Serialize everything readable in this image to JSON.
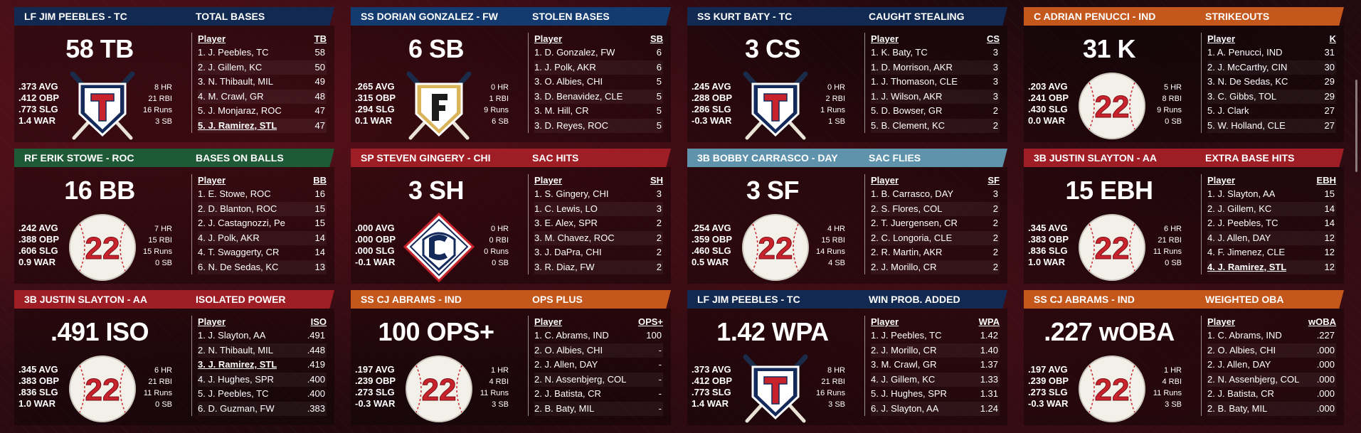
{
  "colors": {
    "navy": "#122a52",
    "blue": "#133b70",
    "green": "#1f5a36",
    "red": "#9f1e26",
    "light_blue": "#5f93ac",
    "orange": "#c4571b"
  },
  "cards": [
    {
      "header_color": "navy",
      "stat_color": "navy",
      "player": "LF JIM PEEBLES - TC",
      "stat_name": "TOTAL BASES",
      "big": "58 TB",
      "logo": "shield-t",
      "lines": [
        ".373 AVG",
        ".412 OBP",
        ".773 SLG",
        "1.4 WAR"
      ],
      "rstats": [
        "8 HR",
        "21 RBI",
        "16 Runs",
        "3 SB"
      ],
      "col_player": "Player",
      "col_stat": "TB",
      "rows": [
        {
          "name": "1. J. Peebles, TC",
          "value": "58"
        },
        {
          "name": "2. J. Gillem, KC",
          "value": "50"
        },
        {
          "name": "3. N. Thibault, MIL",
          "value": "49"
        },
        {
          "name": "4. M. Crawl, GR",
          "value": "48"
        },
        {
          "name": "5. J. Monjaraz, ROC",
          "value": "47"
        },
        {
          "name": "5. J. Ramirez, STL",
          "value": "47",
          "hl": true
        }
      ]
    },
    {
      "header_color": "blue",
      "stat_color": "blue",
      "player": "SS DORIAN GONZALEZ - FW",
      "stat_name": "STOLEN BASES",
      "big": "6 SB",
      "logo": "shield-f",
      "lines": [
        ".265 AVG",
        ".315 OBP",
        ".294 SLG",
        "0.1 WAR"
      ],
      "rstats": [
        "0 HR",
        "1 RBI",
        "9 Runs",
        "6 SB"
      ],
      "col_player": "Player",
      "col_stat": "SB",
      "rows": [
        {
          "name": "1. D. Gonzalez, FW",
          "value": "6"
        },
        {
          "name": "1. J. Polk, AKR",
          "value": "6"
        },
        {
          "name": "3. O. Albies, CHI",
          "value": "5"
        },
        {
          "name": "3. D. Benavidez, CLE",
          "value": "5"
        },
        {
          "name": "3. M. Hill, CR",
          "value": "5"
        },
        {
          "name": "3. D. Reyes, ROC",
          "value": "5"
        }
      ]
    },
    {
      "header_color": "navy",
      "stat_color": "navy",
      "player": "SS KURT BATY - TC",
      "stat_name": "CAUGHT STEALING",
      "big": "3 CS",
      "logo": "shield-t",
      "lines": [
        ".245 AVG",
        ".288 OBP",
        ".286 SLG",
        "-0.3 WAR"
      ],
      "rstats": [
        "0 HR",
        "2 RBI",
        "1 Runs",
        "1 SB"
      ],
      "col_player": "Player",
      "col_stat": "CS",
      "rows": [
        {
          "name": "1. K. Baty, TC",
          "value": "3"
        },
        {
          "name": "1. D. Morrison, AKR",
          "value": "3"
        },
        {
          "name": "1. J. Thomason, CLE",
          "value": "3"
        },
        {
          "name": "1. J. Wilson, AKR",
          "value": "3"
        },
        {
          "name": "5. D. Bowser, GR",
          "value": "2"
        },
        {
          "name": "5. B. Clement, KC",
          "value": "2"
        }
      ]
    },
    {
      "header_color": "orange",
      "stat_color": "orange",
      "player": "C ADRIAN PENUCCI - IND",
      "stat_name": "STRIKEOUTS",
      "big": "31 K",
      "logo": "ball-22",
      "lines": [
        ".203 AVG",
        ".241 OBP",
        ".430 SLG",
        "0.0 WAR"
      ],
      "rstats": [
        "5 HR",
        "8 RBI",
        "9 Runs",
        "0 SB"
      ],
      "col_player": "Player",
      "col_stat": "K",
      "rows": [
        {
          "name": "1. A. Penucci, IND",
          "value": "31"
        },
        {
          "name": "2. J. McCarthy, CIN",
          "value": "30"
        },
        {
          "name": "3. N. De Sedas, KC",
          "value": "29"
        },
        {
          "name": "3. C. Gibbs, TOL",
          "value": "29"
        },
        {
          "name": "5. J. Clark",
          "value": "27"
        },
        {
          "name": "5. W. Holland, CLE",
          "value": "27"
        }
      ]
    },
    {
      "header_color": "green",
      "stat_color": "green",
      "player": "RF ERIK STOWE - ROC",
      "stat_name": "BASES ON BALLS",
      "big": "16 BB",
      "logo": "ball-22",
      "lines": [
        ".242 AVG",
        ".388 OBP",
        ".606 SLG",
        "0.9 WAR"
      ],
      "rstats": [
        "7 HR",
        "15 RBI",
        "15 Runs",
        "0 SB"
      ],
      "col_player": "Player",
      "col_stat": "BB",
      "rows": [
        {
          "name": "1. E. Stowe, ROC",
          "value": "16"
        },
        {
          "name": "2. D. Blanton, ROC",
          "value": "15"
        },
        {
          "name": "2. J. Castagnozzi, Pe",
          "value": "15"
        },
        {
          "name": "4. J. Polk, AKR",
          "value": "14"
        },
        {
          "name": "4. T. Swaggerty, CR",
          "value": "14"
        },
        {
          "name": "6. N. De Sedas, KC",
          "value": "13"
        }
      ]
    },
    {
      "header_color": "red",
      "stat_color": "red",
      "player": "SP STEVEN GINGERY - CHI",
      "stat_name": "SAC HITS",
      "big": "3 SH",
      "logo": "diamond-c",
      "lines": [
        ".000 AVG",
        ".000 OBP",
        ".000 SLG",
        "-0.1 WAR"
      ],
      "rstats": [
        "0 HR",
        "0 RBI",
        "0 Runs",
        "0 SB"
      ],
      "col_player": "Player",
      "col_stat": "SH",
      "rows": [
        {
          "name": "1. S. Gingery, CHI",
          "value": "3"
        },
        {
          "name": "1. C. Lewis, LO",
          "value": "3"
        },
        {
          "name": "3. E. Alex, SPR",
          "value": "2"
        },
        {
          "name": "3. M. Chavez, ROC",
          "value": "2"
        },
        {
          "name": "3. J. DaPra, CHI",
          "value": "2"
        },
        {
          "name": "3. R. Diaz, FW",
          "value": "2"
        }
      ]
    },
    {
      "header_color": "light_blue",
      "stat_color": "light_blue",
      "player": "3B BOBBY CARRASCO - DAY",
      "stat_name": "SAC FLIES",
      "big": "3 SF",
      "logo": "ball-22",
      "lines": [
        ".254 AVG",
        ".359 OBP",
        ".460 SLG",
        "0.5 WAR"
      ],
      "rstats": [
        "4 HR",
        "15 RBI",
        "14 Runs",
        "4 SB"
      ],
      "col_player": "Player",
      "col_stat": "SF",
      "rows": [
        {
          "name": "1. B. Carrasco, DAY",
          "value": "3"
        },
        {
          "name": "2. S. Flores, COL",
          "value": "2"
        },
        {
          "name": "2. T. Juergensen, CR",
          "value": "2"
        },
        {
          "name": "2. C. Longoria, CLE",
          "value": "2"
        },
        {
          "name": "2. R. Martin, AKR",
          "value": "2"
        },
        {
          "name": "2. J. Morillo, CR",
          "value": "2"
        }
      ]
    },
    {
      "header_color": "red",
      "stat_color": "red",
      "player": "3B JUSTIN SLAYTON - AA",
      "stat_name": "EXTRA BASE HITS",
      "big": "15 EBH",
      "logo": "ball-22",
      "lines": [
        ".345 AVG",
        ".383 OBP",
        ".836 SLG",
        "1.0 WAR"
      ],
      "rstats": [
        "6 HR",
        "21 RBI",
        "11 Runs",
        "0 SB"
      ],
      "col_player": "Player",
      "col_stat": "EBH",
      "rows": [
        {
          "name": "1. J. Slayton, AA",
          "value": "15"
        },
        {
          "name": "2. J. Gillem, KC",
          "value": "14"
        },
        {
          "name": "2. J. Peebles, TC",
          "value": "14"
        },
        {
          "name": "4. J. Allen, DAY",
          "value": "12"
        },
        {
          "name": "4. F. Jimenez, CLE",
          "value": "12"
        },
        {
          "name": "4. J. Ramirez, STL",
          "value": "12",
          "hl": true
        }
      ]
    },
    {
      "header_color": "red",
      "stat_color": "red",
      "player": "3B JUSTIN SLAYTON - AA",
      "stat_name": "ISOLATED POWER",
      "big": ".491 ISO",
      "logo": "ball-22",
      "lines": [
        ".345 AVG",
        ".383 OBP",
        ".836 SLG",
        "1.0 WAR"
      ],
      "rstats": [
        "6 HR",
        "21 RBI",
        "11 Runs",
        "0 SB"
      ],
      "col_player": "Player",
      "col_stat": "ISO",
      "rows": [
        {
          "name": "1. J. Slayton, AA",
          "value": ".491"
        },
        {
          "name": "2. N. Thibault, MIL",
          "value": ".448"
        },
        {
          "name": "3. J. Ramirez, STL",
          "value": ".419",
          "hl": true
        },
        {
          "name": "4. J. Hughes, SPR",
          "value": ".400"
        },
        {
          "name": "5. J. Peebles, TC",
          "value": ".400"
        },
        {
          "name": "6. D. Guzman, FW",
          "value": ".383"
        }
      ]
    },
    {
      "header_color": "orange",
      "stat_color": "orange",
      "player": "SS CJ ABRAMS - IND",
      "stat_name": "OPS PLUS",
      "big": "100 OPS+",
      "logo": "ball-22",
      "lines": [
        ".197 AVG",
        ".239 OBP",
        ".273 SLG",
        "-0.3 WAR"
      ],
      "rstats": [
        "1 HR",
        "4 RBI",
        "11 Runs",
        "3 SB"
      ],
      "col_player": "Player",
      "col_stat": "OPS+",
      "rows": [
        {
          "name": "1. C. Abrams, IND",
          "value": "100"
        },
        {
          "name": "2. O. Albies, CHI",
          "value": "-"
        },
        {
          "name": "2. J. Allen, DAY",
          "value": "-"
        },
        {
          "name": "2. N. Assenbjerg, COL",
          "value": "-"
        },
        {
          "name": "2. J. Batista, CR",
          "value": "-"
        },
        {
          "name": "2. B. Baty, MIL",
          "value": "-"
        }
      ]
    },
    {
      "header_color": "navy",
      "stat_color": "navy",
      "player": "LF JIM PEEBLES - TC",
      "stat_name": "WIN PROB. ADDED",
      "big": "1.42 WPA",
      "logo": "shield-t",
      "lines": [
        ".373 AVG",
        ".412 OBP",
        ".773 SLG",
        "1.4 WAR"
      ],
      "rstats": [
        "8 HR",
        "21 RBI",
        "16 Runs",
        "3 SB"
      ],
      "col_player": "Player",
      "col_stat": "WPA",
      "rows": [
        {
          "name": "1. J. Peebles, TC",
          "value": "1.42"
        },
        {
          "name": "2. J. Morillo, CR",
          "value": "1.40"
        },
        {
          "name": "3. M. Crawl, GR",
          "value": "1.37"
        },
        {
          "name": "4. J. Gillem, KC",
          "value": "1.33"
        },
        {
          "name": "5. J. Hughes, SPR",
          "value": "1.31"
        },
        {
          "name": "6. J. Slayton, AA",
          "value": "1.24"
        }
      ]
    },
    {
      "header_color": "orange",
      "stat_color": "orange",
      "player": "SS CJ ABRAMS - IND",
      "stat_name": "WEIGHTED OBA",
      "big": ".227 wOBA",
      "logo": "ball-22",
      "lines": [
        ".197 AVG",
        ".239 OBP",
        ".273 SLG",
        "-0.3 WAR"
      ],
      "rstats": [
        "1 HR",
        "4 RBI",
        "11 Runs",
        "3 SB"
      ],
      "col_player": "Player",
      "col_stat": "wOBA",
      "rows": [
        {
          "name": "1. C. Abrams, IND",
          "value": ".227"
        },
        {
          "name": "2. O. Albies, CHI",
          "value": ".000"
        },
        {
          "name": "2. J. Allen, DAY",
          "value": ".000"
        },
        {
          "name": "2. N. Assenbjerg, COL",
          "value": ".000"
        },
        {
          "name": "2. J. Batista, CR",
          "value": ".000"
        },
        {
          "name": "2. B. Baty, MIL",
          "value": ".000"
        }
      ]
    }
  ]
}
